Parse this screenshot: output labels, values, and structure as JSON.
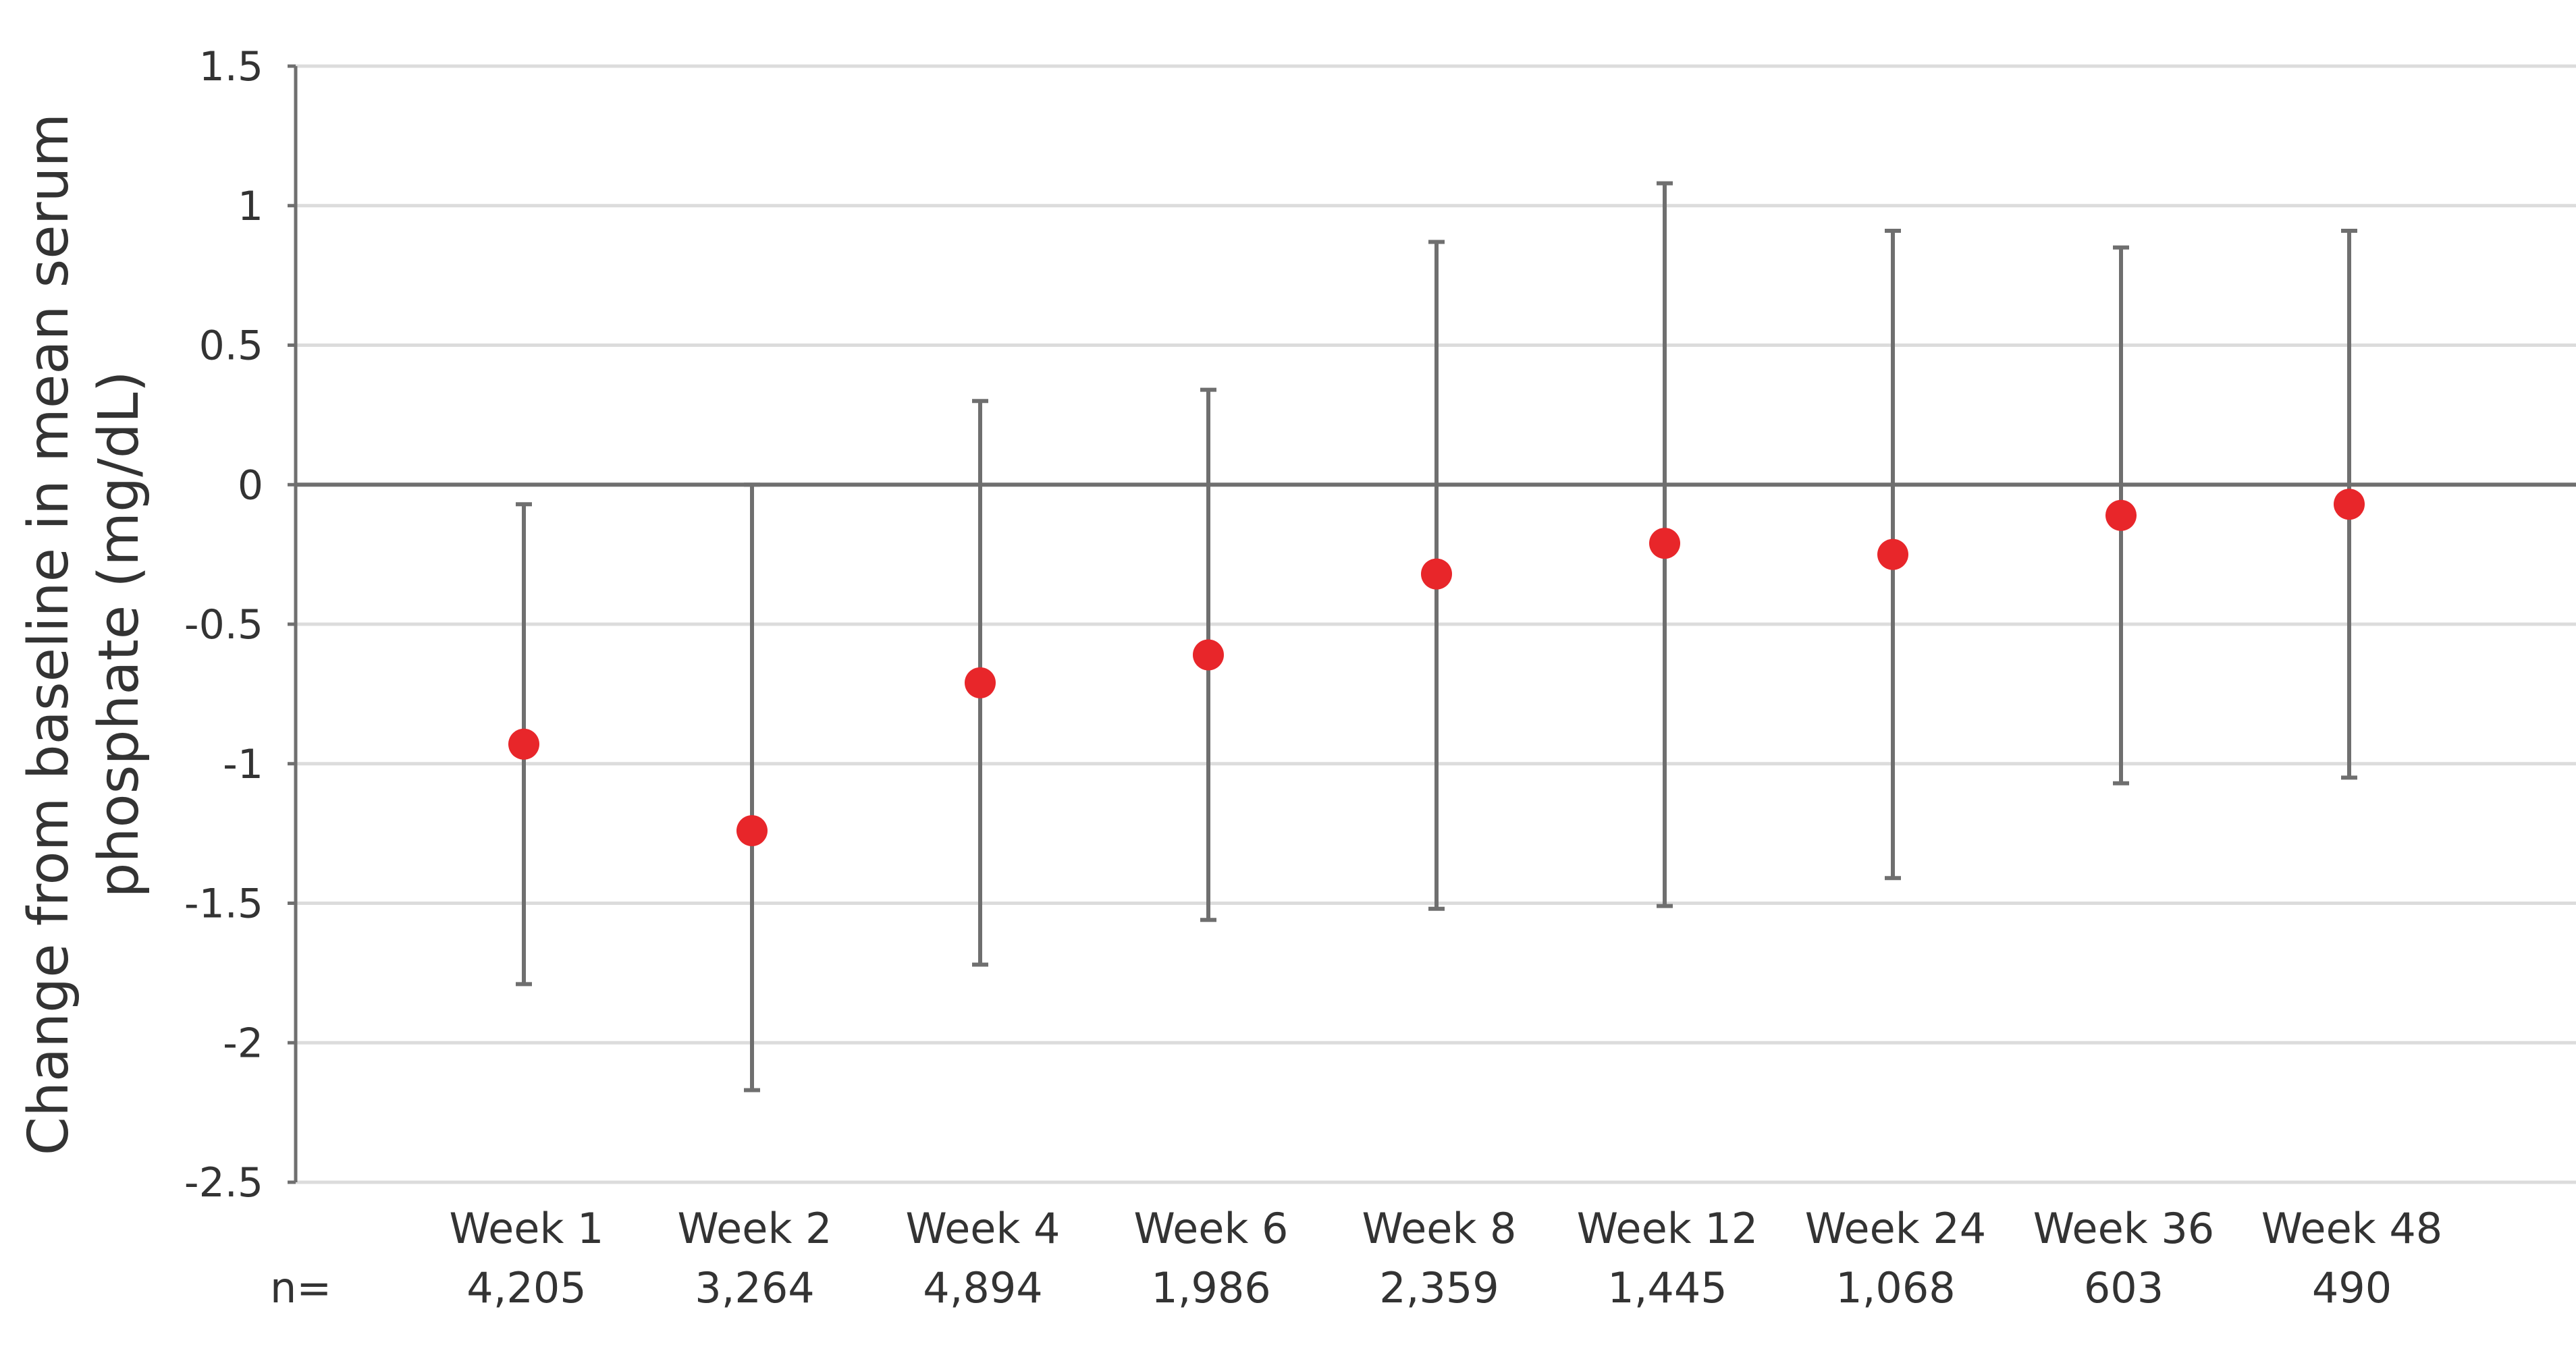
{
  "chart_data": {
    "type": "scatter",
    "ylabel_lines": [
      "Change from baseline in mean serum",
      "phosphate (mg/dL)"
    ],
    "ylim": [
      -2.5,
      1.5
    ],
    "yticks": [
      1.5,
      1,
      0.5,
      0,
      -0.5,
      -1,
      -1.5,
      -2,
      -2.5
    ],
    "ytick_labels": [
      "1.5",
      "1",
      "0.5",
      "0",
      "-0.5",
      "-1",
      "-1.5",
      "-2",
      "-2.5"
    ],
    "grid": true,
    "n_prefix": "n=",
    "categories": [
      "Week 1",
      "Week 2",
      "Week 4",
      "Week 6",
      "Week 8",
      "Week 12",
      "Week 24",
      "Week 36",
      "Week 48"
    ],
    "n_values": [
      "4,205",
      "3,264",
      "4,894",
      "1,986",
      "2,359",
      "1,445",
      "1,068",
      "603",
      "490"
    ],
    "series": [
      {
        "values": [
          -0.93,
          -1.24,
          -0.71,
          -0.61,
          -0.32,
          -0.21,
          -0.25,
          -0.11,
          -0.07
        ],
        "error_upper": [
          -0.07,
          0.0,
          0.3,
          0.34,
          0.87,
          1.08,
          0.91,
          0.85,
          0.91
        ],
        "error_lower": [
          -1.79,
          -2.17,
          -1.72,
          -1.56,
          -1.52,
          -1.51,
          -1.41,
          -1.07,
          -1.05
        ]
      }
    ],
    "colors": {
      "marker": "#e8262a",
      "error_bar": "#6f6f6f",
      "gridline": "#dcdcdc",
      "zero_line": "#6f6f6f",
      "axis": "#6f6f6f",
      "text": "#333333"
    }
  }
}
